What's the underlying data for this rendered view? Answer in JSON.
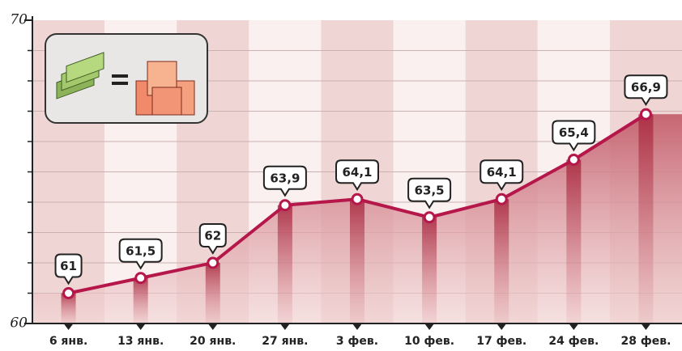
{
  "chart_data": {
    "type": "line",
    "categories": [
      "6 янв.",
      "13 янв.",
      "20 янв.",
      "27 янв.",
      "3 фев.",
      "10 фев.",
      "17 фев.",
      "24 фев.",
      "28 фев."
    ],
    "values": [
      61,
      61.5,
      62,
      63.9,
      64.1,
      63.5,
      64.1,
      65.4,
      66.9
    ],
    "value_labels": [
      "61",
      "61,5",
      "62",
      "63,9",
      "64,1",
      "63,5",
      "64,1",
      "65,4",
      "66,9"
    ],
    "color": "#b5174a",
    "ylim": [
      60,
      70
    ],
    "yticks": [
      60,
      70
    ],
    "yminor_ticks": [
      61,
      62,
      63,
      64,
      65,
      66,
      67,
      68,
      69
    ],
    "grid": true
  }
}
